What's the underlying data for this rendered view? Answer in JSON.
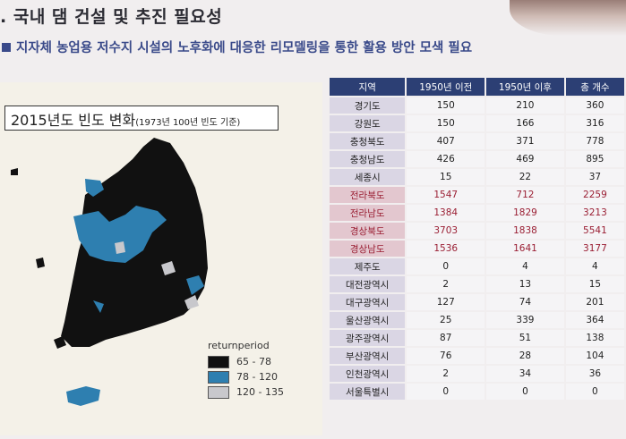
{
  "header": {
    "title": ". 국내 댐 건설 및 추진 필요성",
    "subtitle": "지자체 농업용 저수지 시설의 노후화에 대응한 리모델링을 통한 활용 방안 모색 필요"
  },
  "map": {
    "title_main": "2015년도 빈도 변화",
    "title_note": "(1973년 100년 빈도 기준)",
    "legend": {
      "title": "returnperiod",
      "items": [
        {
          "label": "65 - 78",
          "color": "#101010"
        },
        {
          "label": "78 - 120",
          "color": "#2e7fb0"
        },
        {
          "label": "120 - 135",
          "color": "#c8c8cc"
        }
      ]
    }
  },
  "table": {
    "headers": [
      "지역",
      "1950년 이전",
      "1950년 이후",
      "총 개수"
    ],
    "rows": [
      {
        "region": "경기도",
        "before": "150",
        "after": "210",
        "total": "360",
        "highlight": false
      },
      {
        "region": "강원도",
        "before": "150",
        "after": "166",
        "total": "316",
        "highlight": false
      },
      {
        "region": "충청북도",
        "before": "407",
        "after": "371",
        "total": "778",
        "highlight": false
      },
      {
        "region": "충청남도",
        "before": "426",
        "after": "469",
        "total": "895",
        "highlight": false
      },
      {
        "region": "세종시",
        "before": "15",
        "after": "22",
        "total": "37",
        "highlight": false
      },
      {
        "region": "전라북도",
        "before": "1547",
        "after": "712",
        "total": "2259",
        "highlight": true
      },
      {
        "region": "전라남도",
        "before": "1384",
        "after": "1829",
        "total": "3213",
        "highlight": true
      },
      {
        "region": "경상북도",
        "before": "3703",
        "after": "1838",
        "total": "5541",
        "highlight": true
      },
      {
        "region": "경상남도",
        "before": "1536",
        "after": "1641",
        "total": "3177",
        "highlight": true
      },
      {
        "region": "제주도",
        "before": "0",
        "after": "4",
        "total": "4",
        "highlight": false
      },
      {
        "region": "대전광역시",
        "before": "2",
        "after": "13",
        "total": "15",
        "highlight": false
      },
      {
        "region": "대구광역시",
        "before": "127",
        "after": "74",
        "total": "201",
        "highlight": false
      },
      {
        "region": "울산광역시",
        "before": "25",
        "after": "339",
        "total": "364",
        "highlight": false
      },
      {
        "region": "광주광역시",
        "before": "87",
        "after": "51",
        "total": "138",
        "highlight": false
      },
      {
        "region": "부산광역시",
        "before": "76",
        "after": "28",
        "total": "104",
        "highlight": false
      },
      {
        "region": "인천광역시",
        "before": "2",
        "after": "34",
        "total": "36",
        "highlight": false
      },
      {
        "region": "서울특별시",
        "before": "0",
        "after": "0",
        "total": "0",
        "highlight": false
      }
    ]
  }
}
